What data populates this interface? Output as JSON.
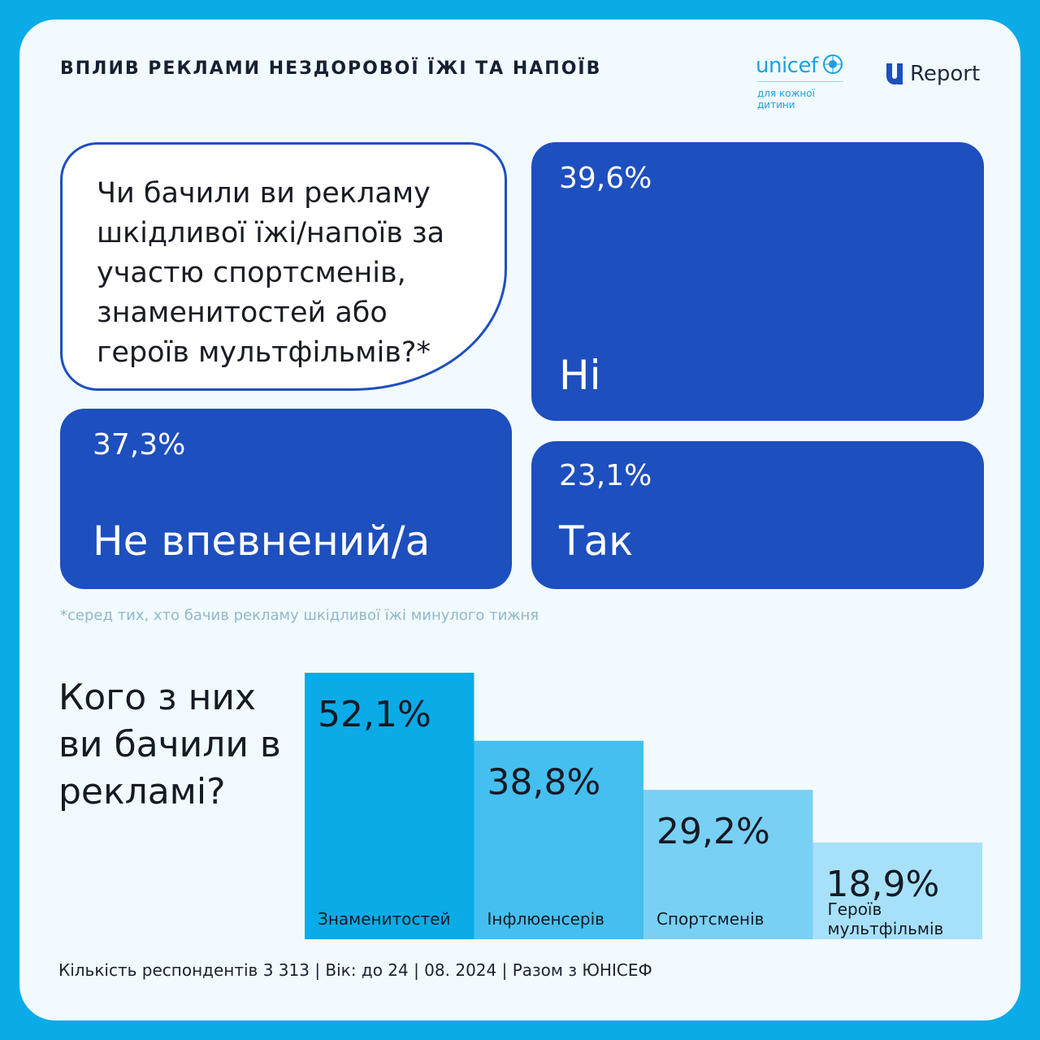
{
  "header": {
    "title": "ВПЛИВ РЕКЛАМИ НЕЗДОРОВОЇ ЇЖІ ТА НАПОЇВ",
    "unicef_word": "unicef",
    "unicef_tagline": "для кожної дитини",
    "ureport_text": "Report"
  },
  "question1": {
    "text": "Чи бачили ви рекламу шкідливої їжі/напоїв за участю спортсменів, знаменитостей або героїв мультфільмів?*"
  },
  "answers": {
    "no": {
      "pct": "39,6%",
      "label": "Ні",
      "value": 39.6
    },
    "unsure": {
      "pct": "37,3%",
      "label": "Не впевнений/а",
      "value": 37.3
    },
    "yes": {
      "pct": "23,1%",
      "label": "Так",
      "value": 23.1
    }
  },
  "footnote": "*серед тих, хто бачив рекламу шкідливої їжі минулого тижня",
  "question2": {
    "text": "Кого з них ви бачили в рекламі?"
  },
  "chart_data": {
    "type": "bar",
    "categories": [
      "Знаменитостей",
      "Інфлюенсерів",
      "Спортсменів",
      "Героїв мультфільмів"
    ],
    "values": [
      52.1,
      38.8,
      29.2,
      18.9
    ],
    "value_labels": [
      "52,1%",
      "38,8%",
      "29,2%",
      "18,9%"
    ],
    "colors": [
      "#0aabe6",
      "#45bff0",
      "#79d0f5",
      "#a7e1f9"
    ],
    "ylim": [
      0,
      52.1
    ],
    "grid": false,
    "legend": "none"
  },
  "footer": "Кількість респондентів 3 313 | Вік: до 24 | 08. 2024 | Разом з ЮНІСЕФ",
  "colors": {
    "background": "#0aabe6",
    "card": "#f1fafe",
    "tile": "#1e4fbe",
    "text_dark": "#151a24",
    "footnote": "#8fb8cc"
  }
}
